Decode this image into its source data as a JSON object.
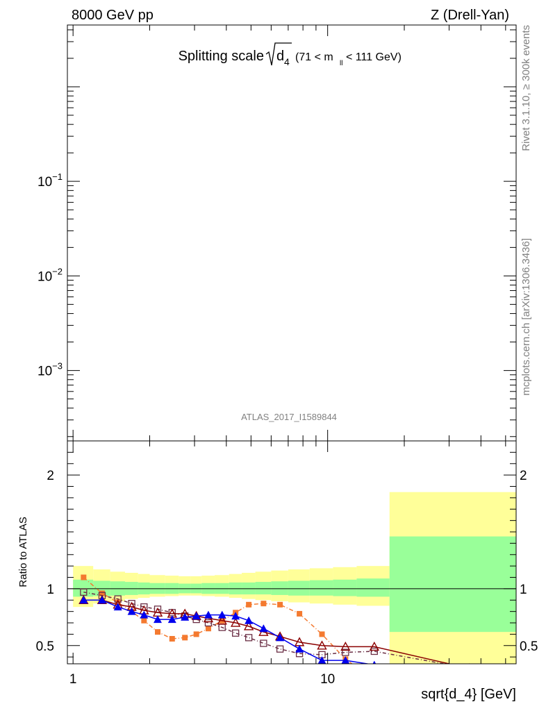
{
  "header": {
    "left": "8000 GeV pp",
    "right": "Z (Drell-Yan)"
  },
  "side_text": {
    "rivet": "Rivet 3.1.10, ≥ 300k events",
    "mcplots": "mcplots.cern.ch [arXiv:1306.3436]"
  },
  "chart_data": [
    {
      "type": "line",
      "title_main": "Splitting scale",
      "title_sqrt": "d",
      "title_sqrt_sub": "4",
      "title_range": "(71 < m",
      "title_range_sub": "ll",
      "title_range_end": " < 111 GeV)",
      "watermark": "ATLAS_2017_I1589844",
      "x_scale": "log",
      "y_scale": "log",
      "xlim": [
        0.95,
        55
      ],
      "ylim": [
        0.00018,
        4.5
      ],
      "y_ticks": [
        {
          "value": 0.1,
          "base": "10",
          "exp": "−1"
        },
        {
          "value": 0.01,
          "base": "10",
          "exp": "−2"
        },
        {
          "value": 0.001,
          "base": "10",
          "exp": "−3"
        }
      ],
      "series": []
    },
    {
      "type": "line",
      "ylabel": "Ratio to ATLAS",
      "xlabel": "sqrt{d_4} [GeV]",
      "x_scale": "log",
      "xlim": [
        0.95,
        55
      ],
      "ylim": [
        0.34,
        2.3
      ],
      "x_ticks": [
        {
          "value": 1,
          "label": "1"
        },
        {
          "value": 10,
          "label": "10"
        }
      ],
      "y_ticks": [
        {
          "value": 0.5,
          "label": "0.5"
        },
        {
          "value": 1,
          "label": "1"
        },
        {
          "value": 2,
          "label": "2"
        }
      ],
      "bands": {
        "edges": [
          1.0,
          1.2,
          1.4,
          1.6,
          1.8,
          2.0,
          2.3,
          2.6,
          2.9,
          3.2,
          3.6,
          4.1,
          4.6,
          5.2,
          6.0,
          7.0,
          8.5,
          10.5,
          13.0,
          17.5,
          55
        ],
        "total": {
          "color": "#ffff99",
          "lo": [
            0.84,
            0.87,
            0.89,
            0.91,
            0.92,
            0.93,
            0.935,
            0.94,
            0.94,
            0.935,
            0.93,
            0.92,
            0.91,
            0.9,
            0.89,
            0.88,
            0.87,
            0.86,
            0.85,
            0.33
          ],
          "hi": [
            1.2,
            1.17,
            1.15,
            1.14,
            1.13,
            1.12,
            1.115,
            1.11,
            1.11,
            1.115,
            1.12,
            1.13,
            1.14,
            1.15,
            1.16,
            1.17,
            1.18,
            1.19,
            1.2,
            1.85
          ]
        },
        "stat": {
          "color": "#99ff99",
          "lo": [
            0.93,
            0.935,
            0.94,
            0.945,
            0.95,
            0.955,
            0.955,
            0.96,
            0.96,
            0.955,
            0.955,
            0.95,
            0.95,
            0.95,
            0.945,
            0.94,
            0.94,
            0.935,
            0.93,
            0.62
          ],
          "hi": [
            1.08,
            1.07,
            1.065,
            1.06,
            1.055,
            1.05,
            1.05,
            1.045,
            1.045,
            1.05,
            1.05,
            1.055,
            1.055,
            1.06,
            1.065,
            1.07,
            1.075,
            1.08,
            1.09,
            1.46
          ]
        }
      },
      "reference_line": 1.0,
      "series": [
        {
          "color": "#f47a30",
          "marker": "filled-square",
          "dash": "6,3,1,3",
          "x": [
            1.1,
            1.3,
            1.5,
            1.7,
            1.9,
            2.15,
            2.45,
            2.75,
            3.05,
            3.4,
            3.85,
            4.35,
            4.9,
            5.6,
            6.5,
            7.75,
            9.5,
            11.75,
            15.25
          ],
          "y": [
            1.1,
            0.96,
            0.88,
            0.8,
            0.72,
            0.62,
            0.56,
            0.57,
            0.6,
            0.65,
            0.72,
            0.79,
            0.86,
            0.87,
            0.86,
            0.78,
            0.6,
            0.38,
            0.2
          ]
        },
        {
          "color": "#6a2e44",
          "marker": "open-square",
          "dash": "5,3,1,3",
          "x": [
            1.1,
            1.3,
            1.5,
            1.7,
            1.9,
            2.15,
            2.45,
            2.75,
            3.05,
            3.4,
            3.85,
            4.35,
            4.9,
            5.6,
            6.5,
            7.75,
            9.5,
            11.75,
            15.25,
            36
          ],
          "y": [
            0.97,
            0.94,
            0.91,
            0.87,
            0.84,
            0.82,
            0.79,
            0.76,
            0.73,
            0.7,
            0.66,
            0.61,
            0.57,
            0.52,
            0.47,
            0.43,
            0.42,
            0.44,
            0.45,
            0.3
          ]
        },
        {
          "color": "#8b0000",
          "marker": "open-triangle",
          "dash": "",
          "x": [
            1.1,
            1.3,
            1.5,
            1.7,
            1.9,
            2.15,
            2.45,
            2.75,
            3.05,
            3.4,
            3.85,
            4.35,
            4.9,
            5.6,
            6.5,
            7.75,
            9.5,
            11.75,
            15.25,
            36
          ],
          "y": [
            0.9,
            0.9,
            0.86,
            0.84,
            0.81,
            0.79,
            0.78,
            0.78,
            0.76,
            0.74,
            0.72,
            0.7,
            0.67,
            0.62,
            0.58,
            0.53,
            0.5,
            0.49,
            0.49,
            0.3
          ]
        },
        {
          "color": "#0000ee",
          "marker": "filled-triangle",
          "dash": "",
          "x": [
            1.1,
            1.3,
            1.5,
            1.7,
            1.9,
            2.15,
            2.45,
            2.75,
            3.05,
            3.4,
            3.85,
            4.35,
            4.9,
            5.6,
            6.5,
            7.75,
            9.5,
            11.75,
            15.25
          ],
          "y": [
            0.9,
            0.9,
            0.84,
            0.8,
            0.77,
            0.73,
            0.73,
            0.75,
            0.76,
            0.77,
            0.77,
            0.76,
            0.72,
            0.65,
            0.57,
            0.47,
            0.37,
            0.37,
            0.33
          ]
        }
      ]
    }
  ]
}
